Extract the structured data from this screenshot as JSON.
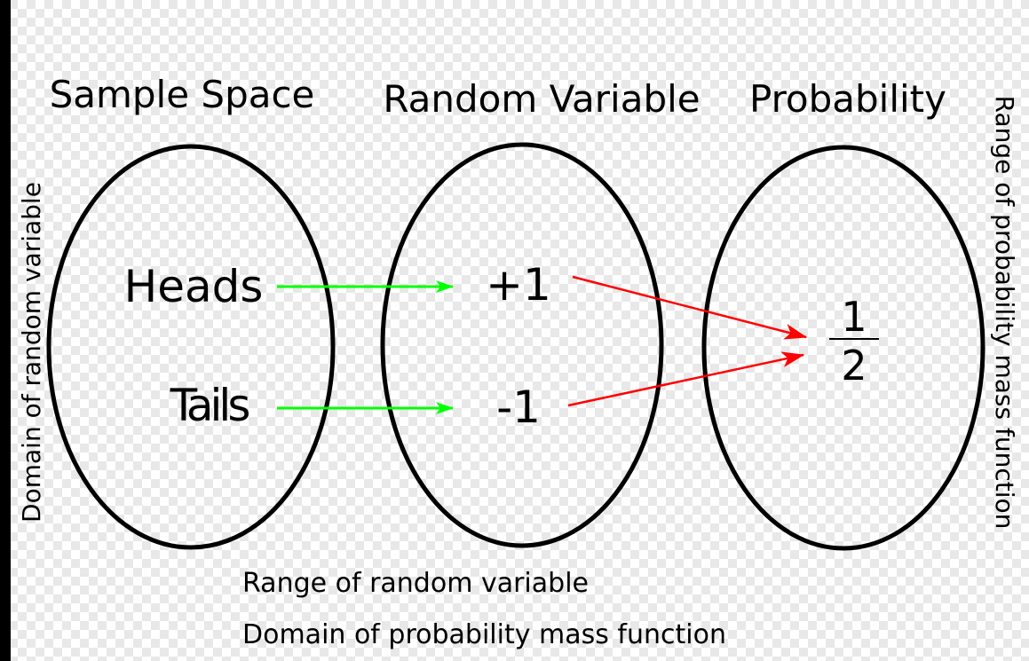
{
  "headers": {
    "sample_space": "Sample Space",
    "random_variable": "Random Variable",
    "probability": "Probability"
  },
  "side_labels": {
    "left": "Domain of random variable",
    "right": "Range of probability mass function"
  },
  "bottom_labels": {
    "line1": "Range of random variable",
    "line2": "Domain of probability mass function"
  },
  "outcomes": {
    "heads": "Heads",
    "tails": "Tails"
  },
  "values": {
    "plus": "+1",
    "minus": "-1"
  },
  "probability_value": {
    "numerator": "1",
    "denominator": "2"
  },
  "colors": {
    "outcome_to_value_arrow": "#00ff00",
    "value_to_probability_arrow": "#ff0000",
    "outline": "#000000"
  }
}
